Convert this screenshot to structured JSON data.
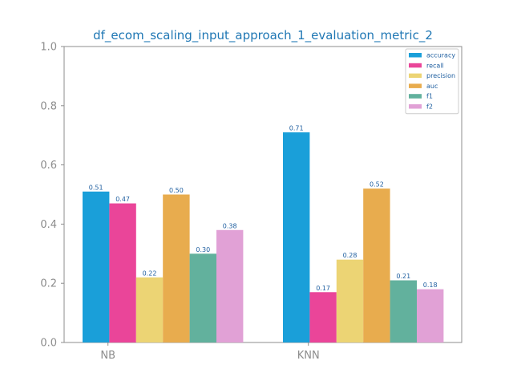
{
  "chart_data": {
    "type": "bar",
    "title": "df_ecom_scaling_input_approach_1_evaluation_metric_2",
    "xlabel": "",
    "ylabel": "",
    "categories": [
      "NB",
      "KNN"
    ],
    "ylim": [
      0,
      1.0
    ],
    "yticks": [
      "0.0",
      "0.2",
      "0.4",
      "0.6",
      "0.8",
      "1.0"
    ],
    "grid": false,
    "legend_position": "top-right",
    "series": [
      {
        "name": "accuracy",
        "color": "#1a9fd9",
        "values": [
          0.51,
          0.71
        ],
        "labels": [
          "0.51",
          "0.71"
        ]
      },
      {
        "name": "recall",
        "color": "#ea4599",
        "values": [
          0.47,
          0.17
        ],
        "labels": [
          "0.47",
          "0.17"
        ]
      },
      {
        "name": "precision",
        "color": "#ecd474",
        "values": [
          0.22,
          0.28
        ],
        "labels": [
          "0.22",
          "0.28"
        ]
      },
      {
        "name": "auc",
        "color": "#e8ac4e",
        "values": [
          0.5,
          0.52
        ],
        "labels": [
          "0.50",
          "0.52"
        ]
      },
      {
        "name": "f1",
        "color": "#62b19d",
        "values": [
          0.3,
          0.21
        ],
        "labels": [
          "0.30",
          "0.21"
        ]
      },
      {
        "name": "f2",
        "color": "#e1a1d6",
        "values": [
          0.38,
          0.18
        ],
        "labels": [
          "0.38",
          "0.18"
        ]
      }
    ]
  }
}
